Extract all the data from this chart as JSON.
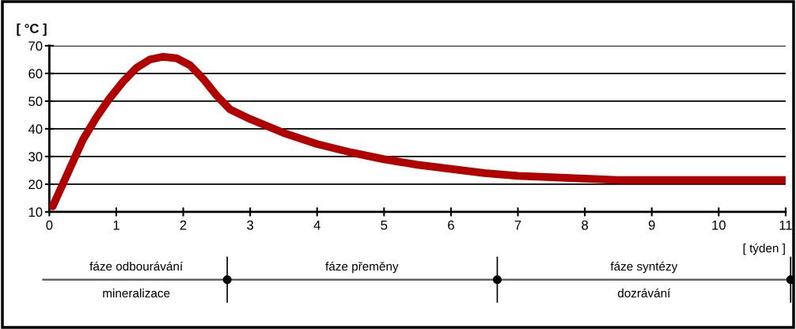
{
  "chart_data": [
    {
      "type": "line",
      "ylabel": "[ °C ]",
      "xlabel": "[ týden ]",
      "xlim": [
        0,
        11
      ],
      "xticks": [
        0,
        1,
        2,
        3,
        4,
        5,
        6,
        7,
        8,
        9,
        10,
        11
      ],
      "ylim": [
        10,
        70
      ],
      "yticks": [
        10,
        20,
        30,
        40,
        50,
        60,
        70
      ],
      "grid": "y",
      "series": [
        {
          "color": "#b00000",
          "x": [
            0.05,
            0.2,
            0.35,
            0.5,
            0.7,
            0.9,
            1.1,
            1.3,
            1.5,
            1.7,
            1.9,
            2.1,
            2.3,
            2.5,
            2.7,
            3.0,
            3.5,
            4.0,
            4.5,
            5.0,
            5.5,
            6.0,
            6.5,
            7.0,
            7.5,
            8.0,
            8.5,
            9.0,
            9.5,
            10.0,
            10.5,
            11.0
          ],
          "values": [
            12,
            20,
            28,
            36,
            44,
            51,
            57,
            62,
            65,
            66,
            65.5,
            63,
            58,
            52,
            47,
            43.5,
            38.5,
            34.5,
            31.5,
            29,
            27,
            25.5,
            24,
            23,
            22.5,
            22,
            21.5,
            21.5,
            21.5,
            21.5,
            21.5,
            21.5
          ]
        }
      ]
    },
    {
      "type": "other",
      "annotations": [
        "fáze odbourávání",
        "mineralizace",
        "fáze přeměny",
        "fáze syntézy",
        "dozrávání"
      ]
    }
  ]
}
